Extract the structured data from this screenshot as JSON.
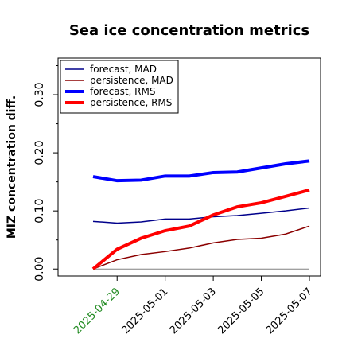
{
  "chart_data": {
    "type": "line",
    "title": "Sea ice concentration metrics",
    "y_label": "MIZ concentration diff.",
    "x": [
      "2025-04-28",
      "2025-04-29",
      "2025-04-30",
      "2025-05-01",
      "2025-05-02",
      "2025-05-03",
      "2025-05-04",
      "2025-05-05",
      "2025-05-06",
      "2025-05-07"
    ],
    "series": [
      {
        "name": "forecast,  MAD",
        "color": "#00008b",
        "width": 1.5,
        "values": [
          0.082,
          0.079,
          0.081,
          0.086,
          0.086,
          0.09,
          0.092,
          0.096,
          0.1,
          0.105
        ]
      },
      {
        "name": "persistence, MAD",
        "color": "#8b0000",
        "width": 1.5,
        "values": [
          0,
          0.016,
          0.025,
          0.03,
          0.036,
          0.045,
          0.051,
          0.053,
          0.06,
          0.074
        ]
      },
      {
        "name": "forecast,  RMS",
        "color": "#0000ff",
        "width": 4,
        "values": [
          0.159,
          0.152,
          0.153,
          0.16,
          0.16,
          0.166,
          0.167,
          0.174,
          0.181,
          0.186
        ]
      },
      {
        "name": "persistence, RMS",
        "color": "#ff0000",
        "width": 4,
        "values": [
          0,
          0.034,
          0.053,
          0.066,
          0.074,
          0.093,
          0.107,
          0.114,
          0.125,
          0.136
        ]
      }
    ],
    "hline": 0,
    "hline_color": "#808080",
    "ylim": [
      -0.012,
      0.363
    ],
    "yticks": [
      {
        "value": 0,
        "label": "0.00"
      },
      {
        "value": 0.1,
        "label": "0.10"
      },
      {
        "value": 0.2,
        "label": "0.20"
      },
      {
        "value": 0.3,
        "label": "0.30"
      }
    ],
    "yminor": [
      0.05,
      0.15,
      0.25,
      0.35
    ],
    "xticks": [
      "2025-04-29",
      "2025-05-01",
      "2025-05-03",
      "2025-05-05",
      "2025-05-07"
    ],
    "xtick_colors": [
      "#228b22",
      "#000000",
      "#000000",
      "#000000",
      "#000000"
    ],
    "legend": "upper left"
  }
}
